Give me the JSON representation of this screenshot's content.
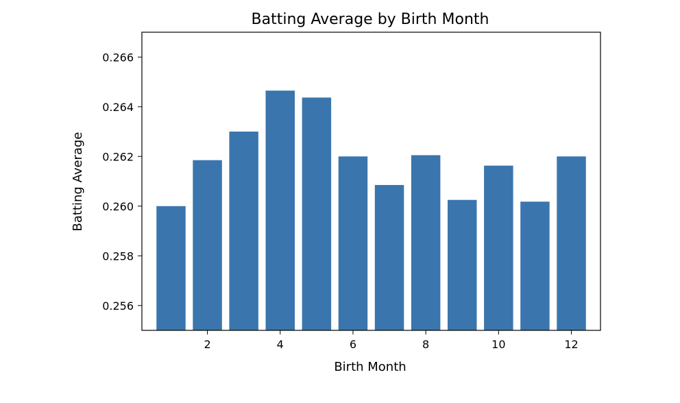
{
  "chart_data": {
    "type": "bar",
    "title": "Batting Average by Birth Month",
    "xlabel": "Birth Month",
    "ylabel": "Batting Average",
    "x": [
      1,
      2,
      3,
      4,
      5,
      6,
      7,
      8,
      9,
      10,
      11,
      12
    ],
    "values": [
      0.26,
      0.26185,
      0.263,
      0.26465,
      0.26437,
      0.262,
      0.26085,
      0.26205,
      0.26025,
      0.26163,
      0.26018,
      0.262
    ],
    "xlim": [
      0.2,
      12.8
    ],
    "ylim": [
      0.255,
      0.267
    ],
    "xticks": [
      2,
      4,
      6,
      8,
      10,
      12
    ],
    "yticks": [
      0.256,
      0.258,
      0.26,
      0.262,
      0.264,
      0.266
    ],
    "xtick_labels": [
      "2",
      "4",
      "6",
      "8",
      "10",
      "12"
    ],
    "ytick_labels": [
      "0.256",
      "0.258",
      "0.260",
      "0.262",
      "0.264",
      "0.266"
    ],
    "bar_width": 0.8,
    "bar_color": "#3a76ad",
    "grid": false,
    "legend": "none"
  }
}
